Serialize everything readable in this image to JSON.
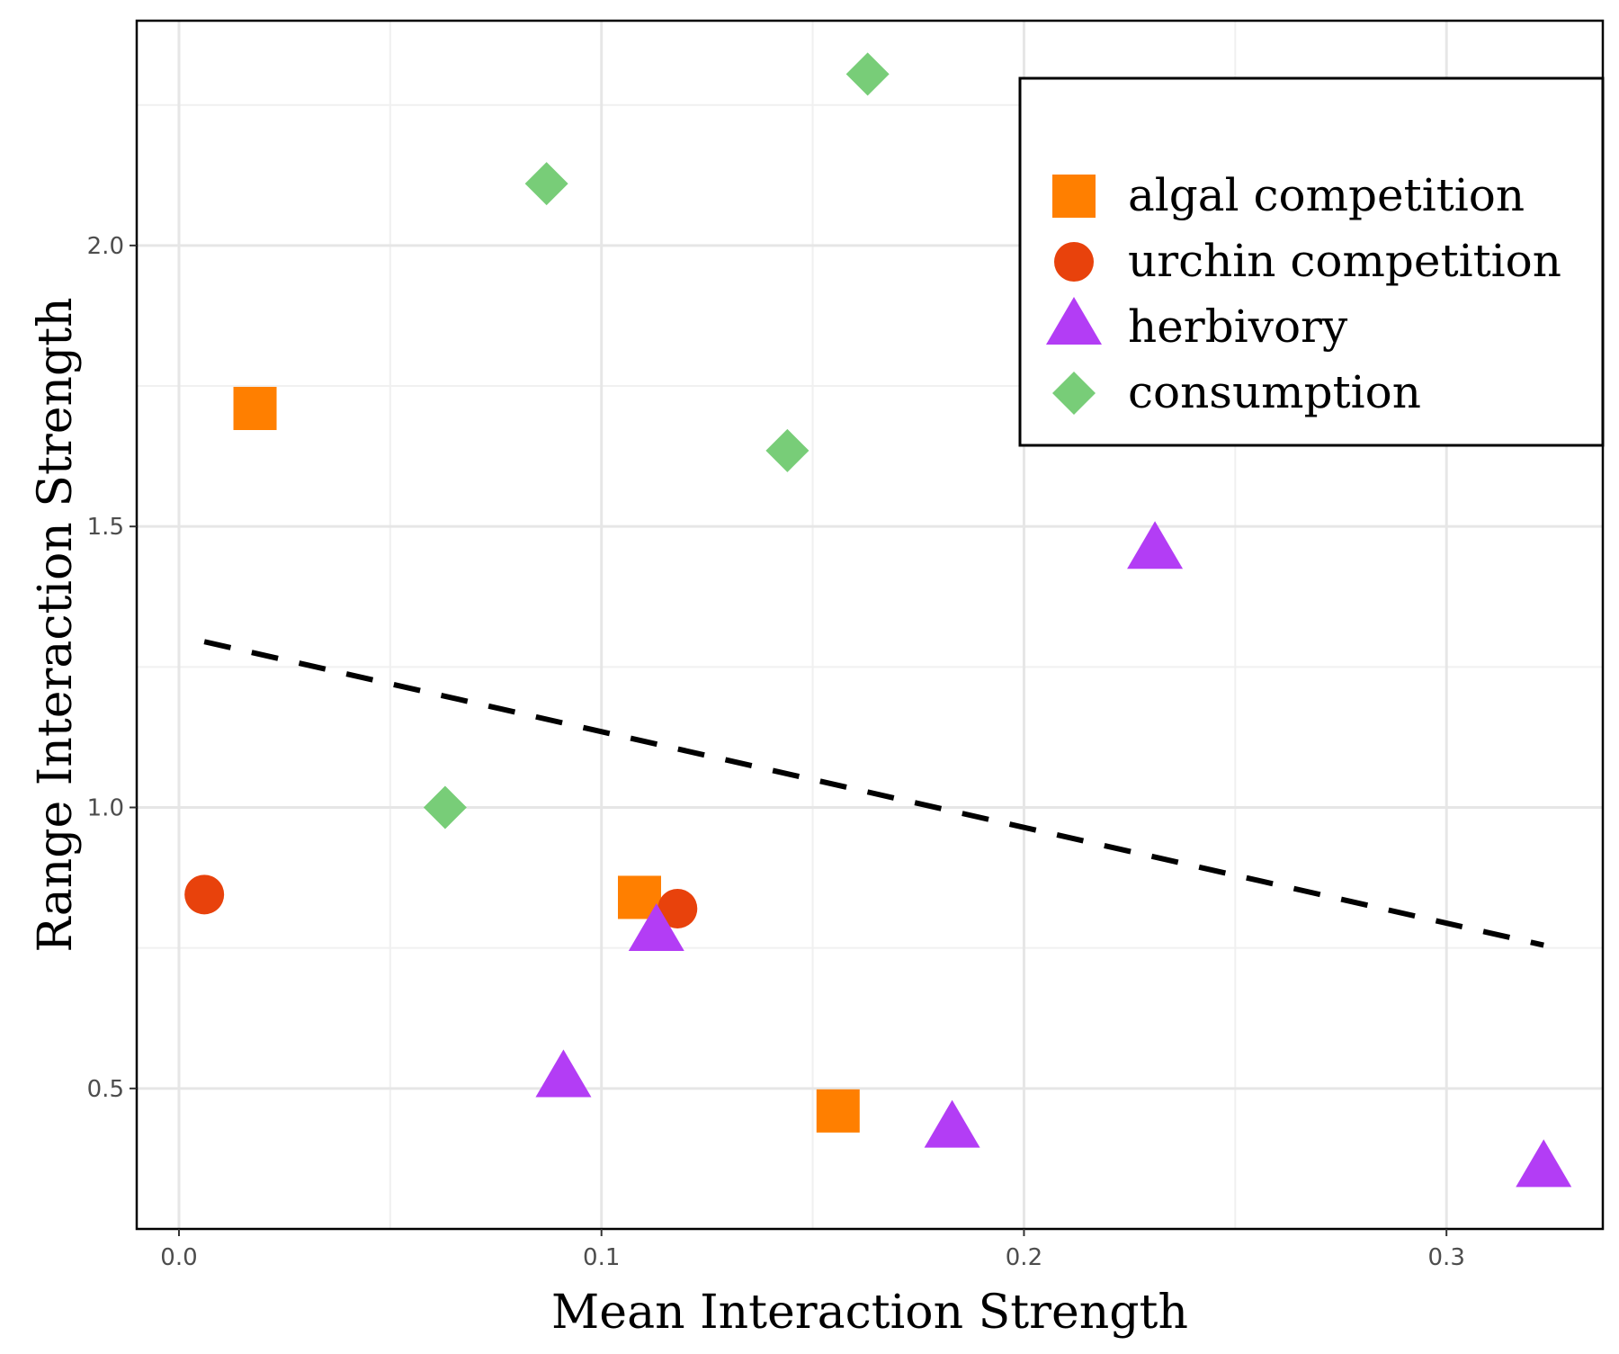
{
  "chart_data": {
    "type": "scatter",
    "xlabel": "Mean Interaction Strength",
    "ylabel": "Range Interaction Strength",
    "xlim": [
      -0.01,
      0.337
    ],
    "ylim": [
      0.25,
      2.4
    ],
    "x_ticks": [
      0.0,
      0.1,
      0.2,
      0.3
    ],
    "x_tick_labels": [
      "0.0",
      "0.1",
      "0.2",
      "0.3"
    ],
    "y_ticks": [
      0.5,
      1.0,
      1.5,
      2.0
    ],
    "y_tick_labels": [
      "0.5",
      "1.0",
      "1.5",
      "2.0"
    ],
    "grid": true,
    "legend_position": "top-right",
    "series": [
      {
        "name": "algal competition",
        "marker": "square",
        "color": "#ff7f00",
        "points": [
          [
            0.018,
            1.71
          ],
          [
            0.109,
            0.84
          ],
          [
            0.156,
            0.46
          ]
        ]
      },
      {
        "name": "urchin competition",
        "marker": "circle",
        "color": "#e8420c",
        "points": [
          [
            0.006,
            0.845
          ],
          [
            0.118,
            0.82
          ]
        ]
      },
      {
        "name": "herbivory",
        "marker": "triangle",
        "color": "#b33df5",
        "points": [
          [
            0.091,
            0.515
          ],
          [
            0.113,
            0.775
          ],
          [
            0.183,
            0.425
          ],
          [
            0.231,
            1.455
          ],
          [
            0.323,
            0.355
          ]
        ]
      },
      {
        "name": "consumption",
        "marker": "diamond",
        "color": "#78cd78",
        "points": [
          [
            0.063,
            1.0
          ],
          [
            0.087,
            2.11
          ],
          [
            0.144,
            1.635
          ],
          [
            0.163,
            2.305
          ]
        ]
      }
    ],
    "trend_line": {
      "style": "dashed",
      "color": "#000000",
      "points": [
        [
          0.006,
          1.295
        ],
        [
          0.323,
          0.755
        ]
      ]
    }
  }
}
